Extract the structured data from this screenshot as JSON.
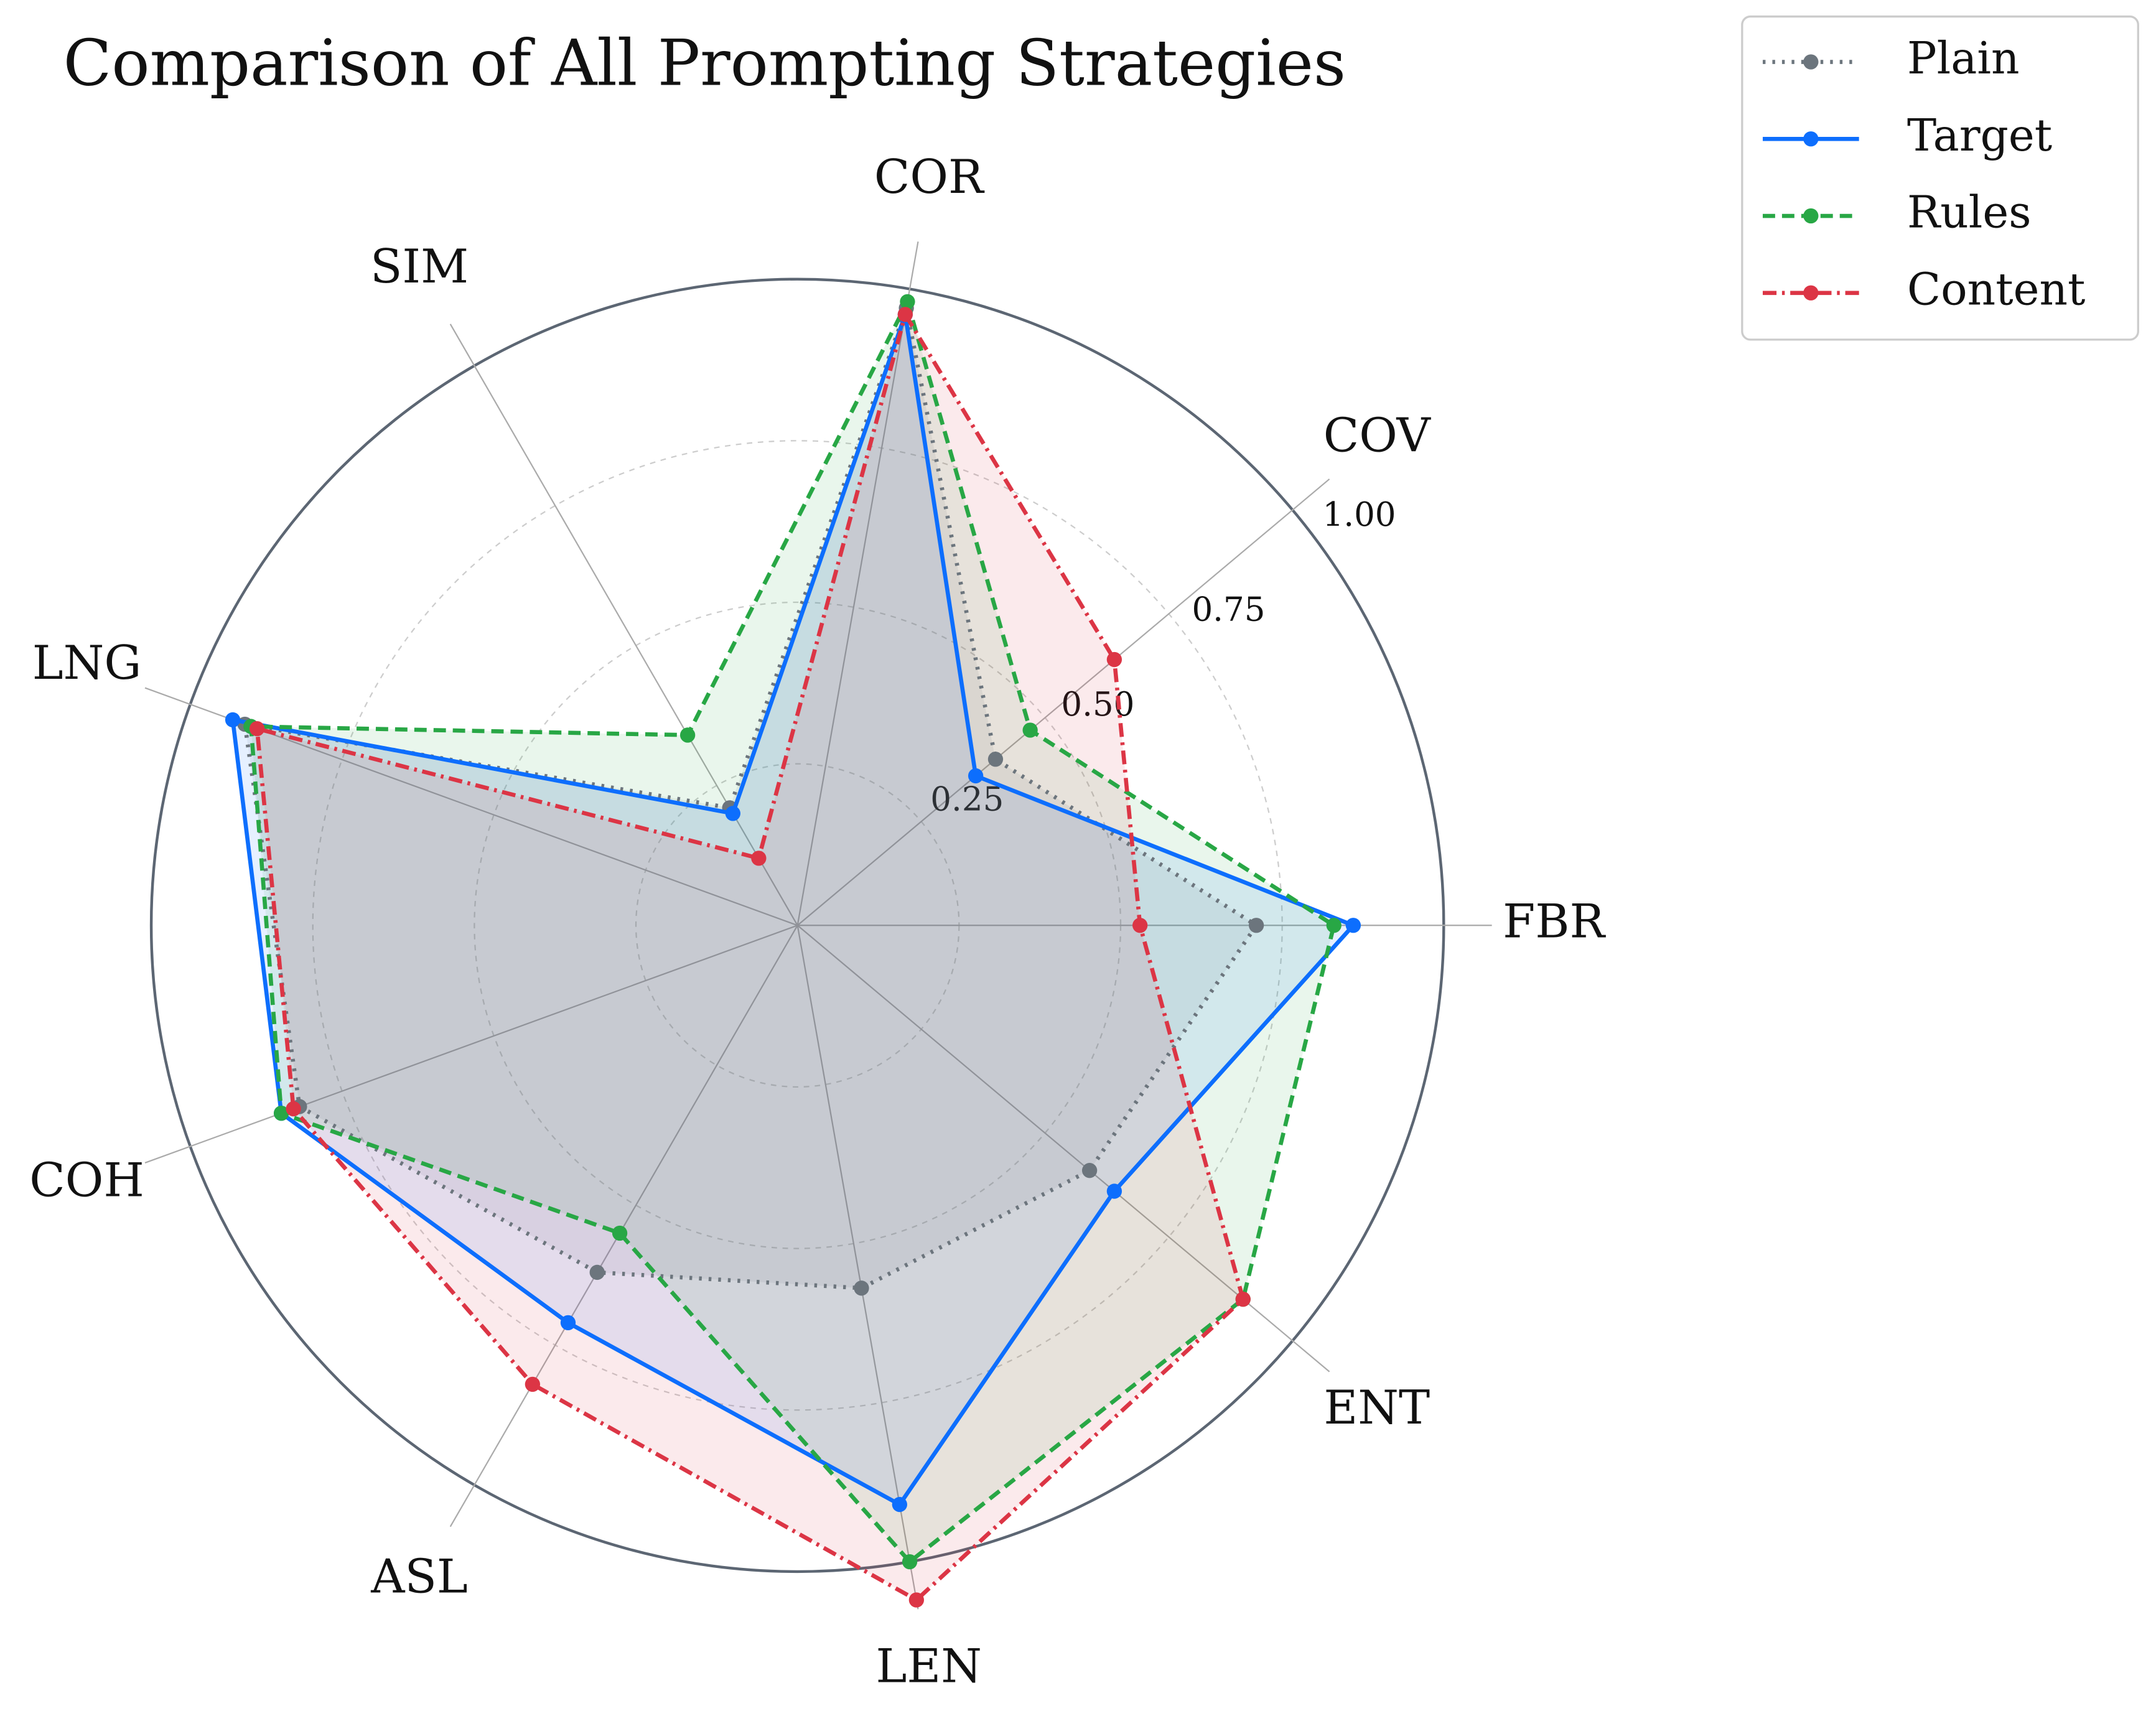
{
  "chart_data": {
    "type": "radar",
    "title": "Comparison of All Prompting Strategies",
    "categories": [
      "COR",
      "COV",
      "FBR",
      "ENT",
      "LEN",
      "ASL",
      "COH",
      "LNG",
      "SIM"
    ],
    "ylim": [
      0,
      1
    ],
    "yticks": [
      0.25,
      {
        "value": 0.5,
        "label": "0.50"
      },
      0.75,
      {
        "value": 1,
        "label": "1.00"
      }
    ],
    "grid": true,
    "series": [
      {
        "name": "Plain",
        "color": "#6c757d",
        "linestyle": "dotted",
        "values": [
          0.97,
          0.4,
          0.71,
          0.59,
          0.57,
          0.62,
          0.82,
          0.91,
          0.21
        ]
      },
      {
        "name": "Target",
        "color": "#0d6efd",
        "linestyle": "solid",
        "values": [
          0.96,
          0.36,
          0.86,
          0.64,
          0.91,
          0.71,
          0.85,
          0.93,
          0.2
        ]
      },
      {
        "name": "Rules",
        "color": "#28a745",
        "linestyle": "dashed",
        "values": [
          0.98,
          0.47,
          0.83,
          0.9,
          1.0,
          0.55,
          0.85,
          0.9,
          0.34
        ]
      },
      {
        "name": "Content",
        "color": "#dc3545",
        "linestyle": "dashdot",
        "values": [
          0.96,
          0.64,
          0.53,
          0.9,
          1.06,
          0.82,
          0.83,
          0.89,
          0.12
        ]
      }
    ]
  }
}
